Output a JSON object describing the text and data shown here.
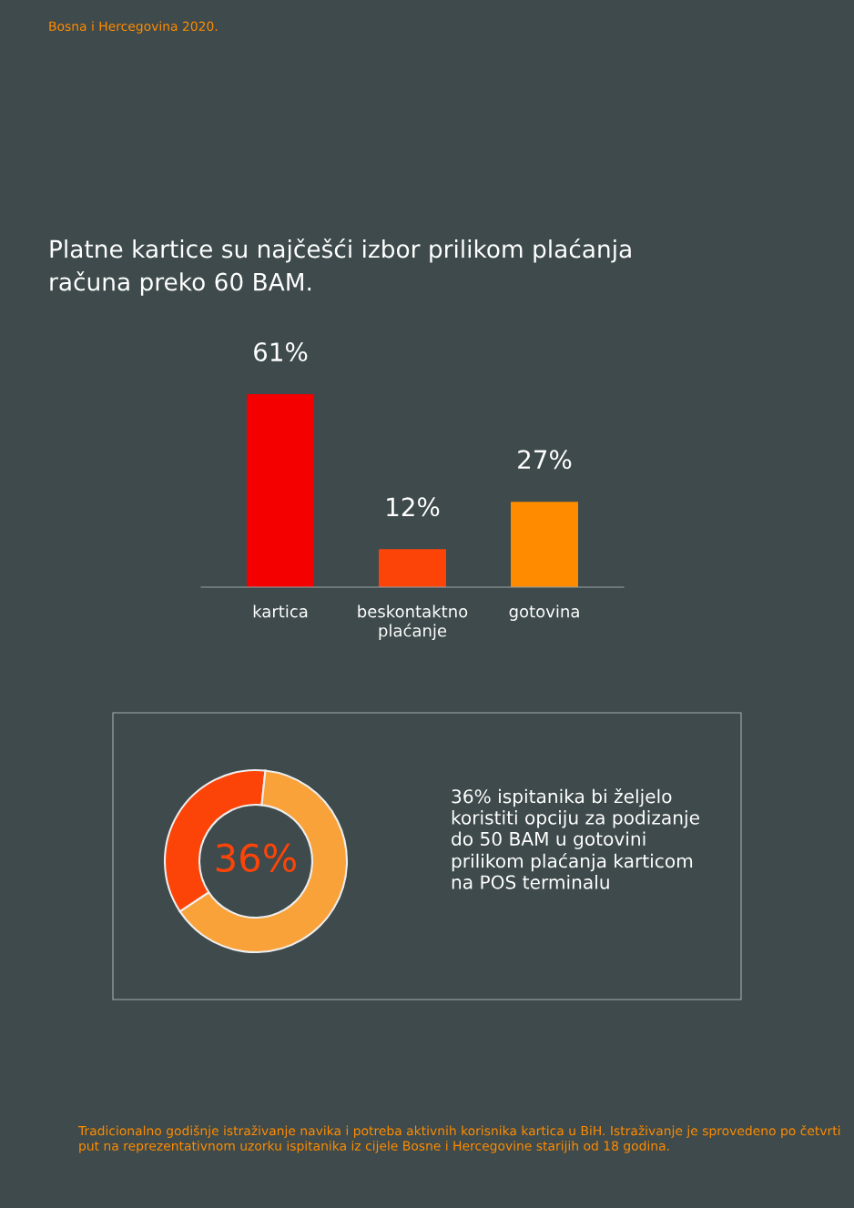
{
  "chart_data": [
    {
      "type": "bar",
      "title": "Platne kartice su najčešći izbor prilikom plaćanja\nračuna preko 60 BAM.",
      "categories": [
        "kartica",
        "beskontaktno\nplaćanje",
        "gotovina"
      ],
      "values": [
        61,
        12,
        27
      ],
      "colors": [
        "#f40000",
        "#fc4408",
        "#ff8c00"
      ],
      "value_labels": [
        "61%",
        "12%",
        "27%"
      ],
      "tick_labels": "x",
      "annotations": [
        "Bosna i Hercegovina 2020."
      ]
    },
    {
      "type": "donut",
      "categories": [
        null,
        null
      ],
      "values": [
        36,
        64
      ],
      "colors": [
        "#fc4408",
        "#f9a23a"
      ],
      "value_labels": [
        "36%",
        null
      ],
      "annotations": [
        "36% ispitanika bi željelo\nkoristiti opciju za podizanje\ndo 50 BAM u gotovini\nprilikom plaćanja karticom\nna POS terminalu",
        "Tradicionalno godišnje istraživanje navika i potreba aktivnih korisnika kartica u BiH. Istraživanje je sprovedeno po četvrti put na reprezentativnom uzorku ispitanika iz cijele Bosne i Hercegovine starijih od 18 godina."
      ]
    }
  ]
}
